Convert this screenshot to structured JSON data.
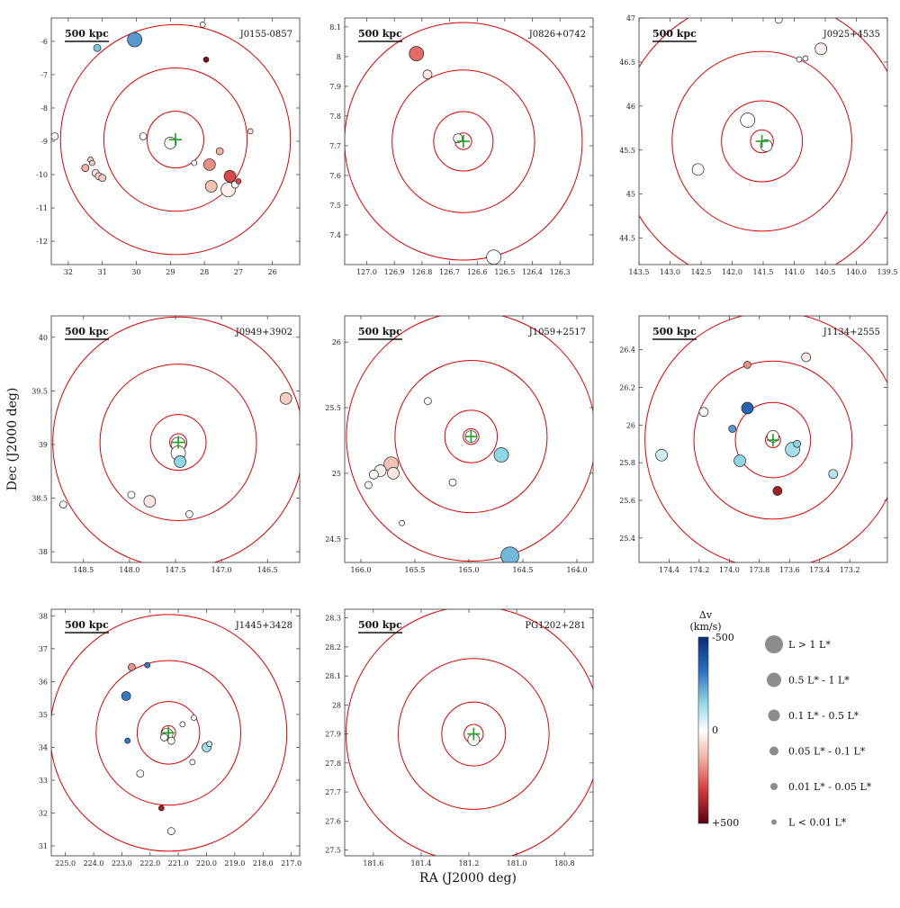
{
  "figure": {
    "xlabel": "RA (J2000 deg)",
    "ylabel": "Dec (J2000 deg)"
  },
  "colorbar": {
    "title_line1": "Δv",
    "title_line2": "(km/s)",
    "top_label": "-500",
    "mid_label": "0",
    "bottom_label": "+500",
    "range": [
      -500,
      500
    ]
  },
  "size_legend": [
    {
      "label": "L > 1 L*",
      "class": 0
    },
    {
      "label": "0.5 L* - 1 L*",
      "class": 1
    },
    {
      "label": "0.1 L* - 0.5 L*",
      "class": 2
    },
    {
      "label": "0.05 L* - 0.1 L*",
      "class": 3
    },
    {
      "label": "0.01 L* - 0.05 L*",
      "class": 4
    },
    {
      "label": "L < 0.01 L*",
      "class": 5
    }
  ],
  "chart_data": [
    {
      "type": "scatter",
      "title": "J0155-0857",
      "scale_label": "500 kpc",
      "xlim": [
        32.5,
        25.2
      ],
      "ylim": [
        -12.7,
        -5.3
      ],
      "xticks": [
        32,
        31,
        30,
        29,
        28,
        27,
        26
      ],
      "yticks": [
        -6,
        -7,
        -8,
        -9,
        -10,
        -11,
        -12
      ],
      "center": [
        28.85,
        -8.95
      ],
      "ring_radii_deg": [
        0.85,
        2.15,
        3.45
      ],
      "galaxies": [
        {
          "ra": 30.05,
          "dec": -5.95,
          "dv": -250,
          "lum": 1
        },
        {
          "ra": 31.15,
          "dec": -6.2,
          "dv": -180,
          "lum": 4
        },
        {
          "ra": 28.05,
          "dec": -5.5,
          "dv": 0,
          "lum": 5
        },
        {
          "ra": 27.95,
          "dec": -6.55,
          "dv": 450,
          "lum": 5
        },
        {
          "ra": 32.4,
          "dec": -8.85,
          "dv": 0,
          "lum": 4
        },
        {
          "ra": 29.8,
          "dec": -8.85,
          "dv": 0,
          "lum": 4
        },
        {
          "ra": 29.0,
          "dec": -9.05,
          "dv": 0,
          "lum": 2
        },
        {
          "ra": 26.65,
          "dec": -8.7,
          "dv": 60,
          "lum": 5
        },
        {
          "ra": 28.3,
          "dec": -9.65,
          "dv": 0,
          "lum": 5
        },
        {
          "ra": 27.85,
          "dec": -9.7,
          "dv": 200,
          "lum": 2
        },
        {
          "ra": 27.55,
          "dec": -9.3,
          "dv": 150,
          "lum": 4
        },
        {
          "ra": 27.25,
          "dec": -10.05,
          "dv": 300,
          "lum": 2
        },
        {
          "ra": 27.0,
          "dec": -10.2,
          "dv": 300,
          "lum": 5
        },
        {
          "ra": 27.1,
          "dec": -10.3,
          "dv": 0,
          "lum": 4
        },
        {
          "ra": 27.8,
          "dec": -10.35,
          "dv": 120,
          "lum": 2
        },
        {
          "ra": 27.3,
          "dec": -10.45,
          "dv": 30,
          "lum": 1
        },
        {
          "ra": 31.5,
          "dec": -9.8,
          "dv": 150,
          "lum": 4
        },
        {
          "ra": 31.35,
          "dec": -9.55,
          "dv": 100,
          "lum": 5
        },
        {
          "ra": 31.3,
          "dec": -9.65,
          "dv": 100,
          "lum": 5
        },
        {
          "ra": 31.2,
          "dec": -9.95,
          "dv": 60,
          "lum": 4
        },
        {
          "ra": 31.1,
          "dec": -10.05,
          "dv": 80,
          "lum": 4
        },
        {
          "ra": 31.0,
          "dec": -10.1,
          "dv": 100,
          "lum": 4
        }
      ]
    },
    {
      "type": "scatter",
      "title": "J0826+0742",
      "scale_label": "500 kpc",
      "xlim": [
        127.08,
        126.18
      ],
      "ylim": [
        7.3,
        8.13
      ],
      "xticks": [
        127.0,
        126.9,
        126.8,
        126.7,
        126.6,
        126.5,
        126.4,
        126.3
      ],
      "yticks": [
        8.1,
        8.0,
        7.9,
        7.8,
        7.7,
        7.6,
        7.5,
        7.4
      ],
      "center": [
        126.65,
        7.715
      ],
      "ring_radii_deg": [
        0.028,
        0.1,
        0.24,
        0.4
      ],
      "galaxies": [
        {
          "ra": 126.82,
          "dec": 8.01,
          "dv": 250,
          "lum": 1
        },
        {
          "ra": 126.78,
          "dec": 7.94,
          "dv": 40,
          "lum": 3
        },
        {
          "ra": 126.67,
          "dec": 7.725,
          "dv": 0,
          "lum": 3
        },
        {
          "ra": 126.54,
          "dec": 7.325,
          "dv": 0,
          "lum": 1
        }
      ]
    },
    {
      "type": "scatter",
      "title": "J0925+4535",
      "scale_label": "500 kpc",
      "xlim": [
        143.5,
        139.5
      ],
      "ylim": [
        44.2,
        47.0
      ],
      "xticks": [
        143.5,
        143.0,
        142.5,
        142.0,
        141.5,
        141.0,
        140.5,
        140.0,
        139.5
      ],
      "yticks": [
        47.0,
        46.5,
        46.0,
        45.5,
        45.0,
        44.5
      ],
      "center": [
        141.52,
        45.6
      ],
      "ring_radii_deg": [
        0.13,
        0.46,
        1.02,
        1.63
      ],
      "galaxies": [
        {
          "ra": 141.25,
          "dec": 46.98,
          "dv": 0,
          "lum": 4
        },
        {
          "ra": 140.57,
          "dec": 46.65,
          "dv": 30,
          "lum": 2
        },
        {
          "ra": 140.92,
          "dec": 46.53,
          "dv": 0,
          "lum": 5
        },
        {
          "ra": 140.82,
          "dec": 46.54,
          "dv": 0,
          "lum": 5
        },
        {
          "ra": 141.75,
          "dec": 45.84,
          "dv": 0,
          "lum": 1
        },
        {
          "ra": 141.45,
          "dec": 45.55,
          "dv": 0,
          "lum": 2
        },
        {
          "ra": 142.55,
          "dec": 45.28,
          "dv": 0,
          "lum": 2
        }
      ]
    },
    {
      "type": "scatter",
      "title": "J0949+3902",
      "scale_label": "500 kpc",
      "xlim": [
        148.85,
        146.15
      ],
      "ylim": [
        37.9,
        40.2
      ],
      "xticks": [
        148.5,
        148.0,
        147.5,
        147.0,
        146.5
      ],
      "yticks": [
        40.0,
        39.5,
        39.0,
        38.5,
        38.0
      ],
      "center": [
        147.47,
        39.02
      ],
      "ring_radii_deg": [
        0.08,
        0.26,
        0.73,
        1.17
      ],
      "galaxies": [
        {
          "ra": 146.3,
          "dec": 39.43,
          "dv": 100,
          "lum": 2
        },
        {
          "ra": 147.47,
          "dec": 39.0,
          "dv": 0,
          "lum": 1
        },
        {
          "ra": 147.47,
          "dec": 38.92,
          "dv": 0,
          "lum": 1
        },
        {
          "ra": 147.45,
          "dec": 38.84,
          "dv": -150,
          "lum": 2
        },
        {
          "ra": 147.98,
          "dec": 38.53,
          "dv": 0,
          "lum": 4
        },
        {
          "ra": 147.78,
          "dec": 38.47,
          "dv": 50,
          "lum": 2
        },
        {
          "ra": 147.35,
          "dec": 38.35,
          "dv": 0,
          "lum": 4
        },
        {
          "ra": 148.72,
          "dec": 38.44,
          "dv": -20,
          "lum": 4
        }
      ]
    },
    {
      "type": "scatter",
      "title": "J1059+2517",
      "scale_label": "500 kpc",
      "xlim": [
        166.15,
        163.85
      ],
      "ylim": [
        24.32,
        26.2
      ],
      "xticks": [
        166.0,
        165.5,
        165.0,
        164.5,
        164.0
      ],
      "yticks": [
        26.0,
        25.5,
        25.0,
        24.5
      ],
      "center": [
        164.98,
        25.28
      ],
      "ring_radii_deg": [
        0.06,
        0.2,
        0.58,
        0.95
      ],
      "galaxies": [
        {
          "ra": 165.38,
          "dec": 25.55,
          "dv": 0,
          "lum": 4
        },
        {
          "ra": 164.98,
          "dec": 25.28,
          "dv": 0,
          "lum": 2
        },
        {
          "ra": 164.7,
          "dec": 25.14,
          "dv": -150,
          "lum": 1
        },
        {
          "ra": 165.72,
          "dec": 25.07,
          "dv": 120,
          "lum": 1
        },
        {
          "ra": 165.7,
          "dec": 25.0,
          "dv": 50,
          "lum": 2
        },
        {
          "ra": 165.82,
          "dec": 25.02,
          "dv": 20,
          "lum": 2
        },
        {
          "ra": 165.88,
          "dec": 24.99,
          "dv": 0,
          "lum": 3
        },
        {
          "ra": 165.93,
          "dec": 24.91,
          "dv": 0,
          "lum": 4
        },
        {
          "ra": 165.15,
          "dec": 24.93,
          "dv": 0,
          "lum": 4
        },
        {
          "ra": 165.62,
          "dec": 24.62,
          "dv": 0,
          "lum": 5
        },
        {
          "ra": 164.62,
          "dec": 24.37,
          "dv": -200,
          "lum": 0
        }
      ]
    },
    {
      "type": "scatter",
      "title": "J1134+2555",
      "scale_label": "500 kpc",
      "xlim": [
        174.6,
        172.95
      ],
      "ylim": [
        25.27,
        26.58
      ],
      "xticks": [
        174.4,
        174.2,
        174.0,
        173.8,
        173.6,
        173.4,
        173.2
      ],
      "yticks": [
        26.4,
        26.2,
        26.0,
        25.8,
        25.6,
        25.4
      ],
      "center": [
        173.71,
        25.92
      ],
      "ring_radii_deg": [
        0.04,
        0.2,
        0.42,
        0.68
      ],
      "galaxies": [
        {
          "ra": 173.88,
          "dec": 26.32,
          "dv": 200,
          "lum": 4
        },
        {
          "ra": 173.49,
          "dec": 26.36,
          "dv": 40,
          "lum": 3
        },
        {
          "ra": 174.17,
          "dec": 26.07,
          "dv": 0,
          "lum": 3
        },
        {
          "ra": 173.88,
          "dec": 26.09,
          "dv": -350,
          "lum": 2
        },
        {
          "ra": 173.98,
          "dec": 25.98,
          "dv": -250,
          "lum": 4
        },
        {
          "ra": 173.71,
          "dec": 25.94,
          "dv": 0,
          "lum": 2
        },
        {
          "ra": 173.58,
          "dec": 25.87,
          "dv": -120,
          "lum": 1
        },
        {
          "ra": 173.55,
          "dec": 25.9,
          "dv": -150,
          "lum": 4
        },
        {
          "ra": 174.45,
          "dec": 25.84,
          "dv": -60,
          "lum": 2
        },
        {
          "ra": 173.93,
          "dec": 25.81,
          "dv": -150,
          "lum": 2
        },
        {
          "ra": 173.31,
          "dec": 25.74,
          "dv": -100,
          "lum": 3
        },
        {
          "ra": 173.68,
          "dec": 25.65,
          "dv": 400,
          "lum": 3
        }
      ]
    },
    {
      "type": "scatter",
      "title": "J1445+3428",
      "scale_label": "500 kpc",
      "xlim": [
        225.5,
        216.7
      ],
      "ylim": [
        30.7,
        38.2
      ],
      "xticks": [
        225,
        224,
        223,
        222,
        221,
        220,
        219,
        218,
        217
      ],
      "yticks": [
        38,
        37,
        36,
        35,
        34,
        33,
        32,
        31
      ],
      "center": [
        221.35,
        34.44
      ],
      "ring_radii_deg": [
        0.22,
        0.95,
        2.2,
        3.6
      ],
      "galaxies": [
        {
          "ra": 222.1,
          "dec": 36.5,
          "dv": -300,
          "lum": 5
        },
        {
          "ra": 222.65,
          "dec": 36.44,
          "dv": 200,
          "lum": 4
        },
        {
          "ra": 222.85,
          "dec": 35.56,
          "dv": -300,
          "lum": 3
        },
        {
          "ra": 221.4,
          "dec": 34.4,
          "dv": 0,
          "lum": 2
        },
        {
          "ra": 221.5,
          "dec": 34.3,
          "dv": 0,
          "lum": 4
        },
        {
          "ra": 221.25,
          "dec": 34.2,
          "dv": 0,
          "lum": 4
        },
        {
          "ra": 220.85,
          "dec": 34.7,
          "dv": 0,
          "lum": 5
        },
        {
          "ra": 220.45,
          "dec": 34.9,
          "dv": 0,
          "lum": 5
        },
        {
          "ra": 220.0,
          "dec": 34.0,
          "dv": -120,
          "lum": 3
        },
        {
          "ra": 219.9,
          "dec": 34.1,
          "dv": -80,
          "lum": 5
        },
        {
          "ra": 222.8,
          "dec": 34.2,
          "dv": -300,
          "lum": 5
        },
        {
          "ra": 220.5,
          "dec": 33.55,
          "dv": 0,
          "lum": 5
        },
        {
          "ra": 222.35,
          "dec": 33.2,
          "dv": 0,
          "lum": 4
        },
        {
          "ra": 221.6,
          "dec": 32.15,
          "dv": 400,
          "lum": 5
        },
        {
          "ra": 221.25,
          "dec": 31.45,
          "dv": 0,
          "lum": 4
        }
      ]
    },
    {
      "type": "scatter",
      "title": "PG1202+281",
      "scale_label": "500 kpc",
      "xlim": [
        181.72,
        180.68
      ],
      "ylim": [
        27.48,
        28.33
      ],
      "xticks": [
        181.6,
        181.4,
        181.2,
        181.0,
        180.8
      ],
      "yticks": [
        28.3,
        28.2,
        28.1,
        28.0,
        27.9,
        27.8,
        27.7,
        27.6,
        27.5
      ],
      "center": [
        181.18,
        27.9
      ],
      "ring_radii_deg": [
        0.033,
        0.11,
        0.26,
        0.44
      ],
      "galaxies": [
        {
          "ra": 181.18,
          "dec": 27.88,
          "dv": 0,
          "lum": 2
        }
      ]
    }
  ]
}
